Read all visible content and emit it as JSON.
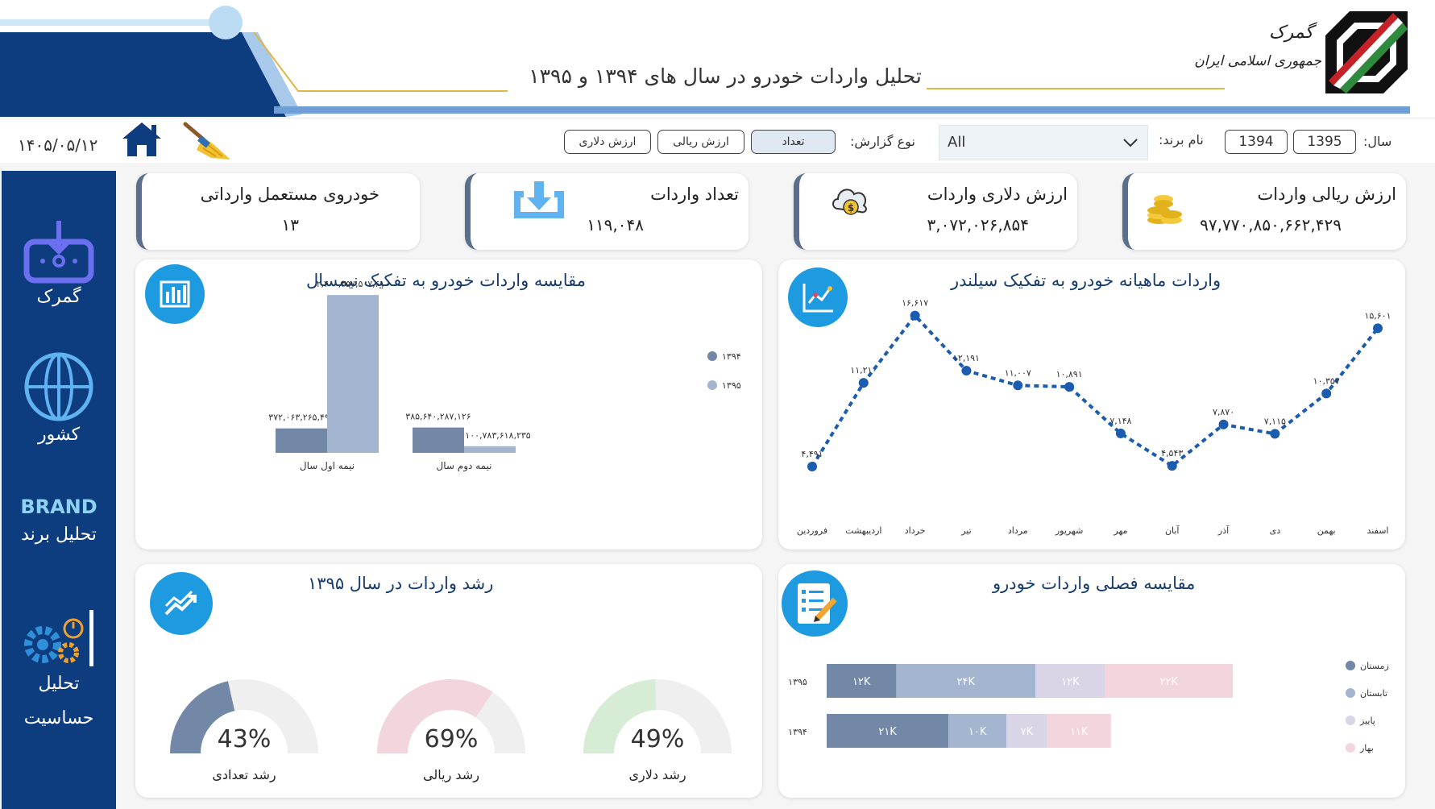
{
  "header": {
    "title": "تحلیل واردات خودرو در سال های ۱۳۹۴ و ۱۳۹۵",
    "gov_line1": "گمرک",
    "gov_line2": "جمهوری اسلامی ایران"
  },
  "filters": {
    "date": "۱۴۰۵/۰۵/۱۲",
    "report_type_label": "نوع گزارش:",
    "report_types": [
      "ارزش دلاری",
      "ارزش ریالی",
      "تعداد"
    ],
    "active_report_type": "تعداد",
    "brand_label": "نام برند:",
    "brand_value": "All",
    "year_label": "سال:",
    "years": [
      "1394",
      "1395"
    ]
  },
  "sidebar": {
    "items": [
      {
        "label": "گمرک",
        "icon": "customs-download-icon"
      },
      {
        "label": "کشور",
        "icon": "globe-icon"
      },
      {
        "label": "تحلیل برند",
        "icon": "brand-icon",
        "badge": "BRAND"
      },
      {
        "label": "تحلیل",
        "label2": "حساسیت",
        "icon": "gears-icon"
      }
    ]
  },
  "kpis": [
    {
      "title": "ارزش ریالی واردات",
      "value": "۹۷,۷۷۰,۸۵۰,۶۶۲,۴۲۹",
      "icon": "gold-coins-icon"
    },
    {
      "title": "ارزش دلاری واردات",
      "value": "۳,۰۷۲,۰۲۶,۸۵۴",
      "icon": "dollar-cloud-icon"
    },
    {
      "title": "تعداد واردات",
      "value": "۱۱۹,۰۴۸",
      "icon": "download-box-icon"
    },
    {
      "title": "خودروی مستعمل وارداتی",
      "value": "۱۳",
      "icon": ""
    }
  ],
  "panels": {
    "semester": {
      "title": "مقایسه واردات خودرو به تفکیک نیمسال"
    },
    "monthly": {
      "title": "واردات ماهیانه خودرو به تفکیک سیلندر"
    },
    "growth": {
      "title": "رشد واردات در سال ۱۳۹۵"
    },
    "seasonal": {
      "title": "مقایسه فصلی واردات خودرو"
    }
  },
  "colors": {
    "navy": "#0d3c7f",
    "accent_blue": "#1e9be0",
    "series_1394": "#7388a6",
    "series_1395": "#a3b5cf",
    "line": "#1b5bb0",
    "winter": "#7388a6",
    "summer": "#a3b5cf",
    "autumn": "#d9d4e6",
    "spring": "#f3d6dd"
  },
  "chart_data": [
    {
      "type": "bar",
      "title": "مقایسه واردات خودرو به تفکیک نیمسال",
      "categories": [
        "نیمه اول سال",
        "نیمه دوم سال"
      ],
      "series": [
        {
          "name": "۱۳۹۴",
          "values": [
            372063265499,
            385640287126
          ],
          "labels": [
            "۳۷۲,۰۶۳,۲۶۵,۴۹۹",
            "۳۸۵,۶۴۰,۲۸۷,۱۲۶"
          ]
        },
        {
          "name": "۱۳۹۵",
          "values": [
            2400357507610,
            100783618235
          ],
          "labels": [
            "۲,۴۰۰,۳۵۷,۵۰۷,۶۱۰",
            "۱۰۰,۷۸۳,۶۱۸,۲۳۵"
          ]
        }
      ],
      "ylim": [
        0,
        2500000000000
      ],
      "legend": "right"
    },
    {
      "type": "line",
      "title": "واردات ماهیانه خودرو به تفکیک سیلندر",
      "categories": [
        "فروردین",
        "اردیبهشت",
        "خرداد",
        "تیر",
        "مرداد",
        "شهریور",
        "مهر",
        "آبان",
        "آذر",
        "دی",
        "بهمن",
        "اسفند"
      ],
      "values": [
        4491,
        11210,
        16617,
        12191,
        11007,
        10891,
        7148,
        4543,
        7870,
        7115,
        10357,
        15601
      ],
      "labels": [
        "۴,۴۹۱",
        "۱۱,۲۱۰",
        "۱۶,۶۱۷",
        "۱۲,۱۹۱",
        "۱۱,۰۰۷",
        "۱۰,۸۹۱",
        "۷,۱۴۸",
        "۴,۵۴۳",
        "۷,۸۷۰",
        "۷,۱۱۵",
        "۱۰,۳۵۷",
        "۱۵,۶۰۱"
      ],
      "ylim": [
        3000,
        17500
      ]
    },
    {
      "type": "pie",
      "title": "رشد واردات در سال ۱۳۹۵",
      "gauges": [
        {
          "label": "رشد دلاری",
          "value": 49,
          "text": "49%",
          "color": "#d6ecd5"
        },
        {
          "label": "رشد ریالی",
          "value": 69,
          "text": "69%",
          "color": "#f3d6dd"
        },
        {
          "label": "رشد تعدادی",
          "value": 43,
          "text": "43%",
          "color": "#7388a6"
        }
      ]
    },
    {
      "type": "bar",
      "title": "مقایسه فصلی واردات خودرو",
      "categories": [
        "۱۳۹۵",
        "۱۳۹۴"
      ],
      "series": [
        {
          "name": "زمستان",
          "values": [
            12,
            21
          ],
          "labels": [
            "۱۲K",
            "۲۱K"
          ]
        },
        {
          "name": "تابستان",
          "values": [
            24,
            10
          ],
          "labels": [
            "۲۴K",
            "۱۰K"
          ]
        },
        {
          "name": "پاییز",
          "values": [
            12,
            7
          ],
          "labels": [
            "۱۲K",
            "۷K"
          ]
        },
        {
          "name": "بهار",
          "values": [
            22,
            11
          ],
          "labels": [
            "۲۲K",
            "۱۱K"
          ]
        }
      ],
      "stacked": true,
      "legend": "right"
    }
  ]
}
